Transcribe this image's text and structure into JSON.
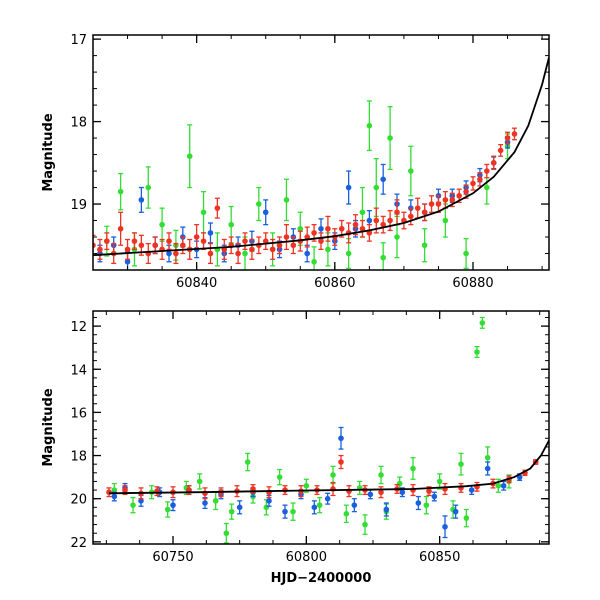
{
  "colors": {
    "green": "#33dd33",
    "blue": "#1a5fdd",
    "red": "#ee3322",
    "model": "#000000",
    "frame": "#000000"
  },
  "chart_data": [
    {
      "type": "scatter",
      "panel": "top",
      "xlabel": "",
      "ylabel": "Magnitude",
      "xlim": [
        60825,
        60891
      ],
      "ylim": [
        19.8,
        16.95
      ],
      "y_inverted": true,
      "xticks": [
        60840,
        60860,
        60880
      ],
      "xtick_labels": [
        "60840",
        "60860",
        "60880"
      ],
      "yticks": [
        17,
        18,
        19
      ],
      "ytick_labels": [
        "17",
        "18",
        "19"
      ],
      "model_curve": {
        "x": [
          60825,
          60835,
          60845,
          60855,
          60860,
          60865,
          60870,
          60875,
          60880,
          60883,
          60886,
          60888,
          60890,
          60891
        ],
        "y": [
          19.62,
          19.57,
          19.52,
          19.44,
          19.39,
          19.32,
          19.23,
          19.09,
          18.87,
          18.67,
          18.37,
          18.05,
          17.55,
          17.22
        ]
      },
      "series": [
        {
          "name": "",
          "color": "green",
          "x": [
            60827,
            60829,
            60831,
            60833,
            60835,
            60837,
            60839,
            60841,
            60843,
            60845,
            60847,
            60849,
            60851,
            60853,
            60855,
            60857,
            60859,
            60862,
            60864,
            60865,
            60866,
            60867,
            60868,
            60869,
            60871,
            60873,
            60876,
            60879,
            60882,
            60885
          ],
          "y": [
            19.45,
            18.85,
            19.55,
            18.8,
            19.25,
            19.5,
            18.42,
            19.1,
            19.55,
            19.25,
            19.6,
            19.0,
            19.55,
            18.95,
            19.3,
            19.7,
            19.55,
            19.6,
            19.1,
            18.05,
            18.8,
            19.65,
            18.2,
            19.4,
            18.6,
            19.5,
            19.2,
            19.6,
            18.8,
            18.3
          ],
          "err": [
            0.18,
            0.22,
            0.2,
            0.25,
            0.2,
            0.18,
            0.38,
            0.25,
            0.2,
            0.22,
            0.2,
            0.2,
            0.2,
            0.25,
            0.2,
            0.18,
            0.2,
            0.18,
            0.3,
            0.3,
            0.35,
            0.18,
            0.38,
            0.25,
            0.3,
            0.2,
            0.2,
            0.18,
            0.2,
            0.15
          ]
        },
        {
          "name": "",
          "color": "blue",
          "x": [
            60826,
            60828,
            60830,
            60832,
            60834,
            60836,
            60838,
            60840,
            60842,
            60844,
            60846,
            60848,
            60850,
            60852,
            60854,
            60856,
            60858,
            60860,
            60862,
            60863,
            60865,
            60867,
            60869,
            60871,
            60873,
            60875,
            60877,
            60879,
            60881,
            60883,
            60885
          ],
          "y": [
            19.6,
            19.5,
            19.7,
            18.95,
            19.5,
            19.6,
            19.4,
            19.55,
            19.35,
            19.6,
            19.5,
            19.45,
            19.1,
            19.55,
            19.4,
            19.6,
            19.3,
            19.45,
            18.8,
            19.3,
            19.2,
            18.7,
            19.0,
            19.05,
            19.1,
            18.9,
            18.9,
            18.8,
            18.65,
            18.5,
            18.25
          ],
          "err": [
            0.1,
            0.1,
            0.12,
            0.15,
            0.1,
            0.1,
            0.12,
            0.1,
            0.12,
            0.1,
            0.1,
            0.12,
            0.15,
            0.1,
            0.1,
            0.1,
            0.12,
            0.1,
            0.2,
            0.1,
            0.12,
            0.18,
            0.12,
            0.1,
            0.1,
            0.08,
            0.08,
            0.08,
            0.08,
            0.07,
            0.07
          ]
        },
        {
          "name": "",
          "color": "red",
          "x": [
            60825,
            60826,
            60827,
            60828,
            60829,
            60830,
            60831,
            60832,
            60833,
            60834,
            60835,
            60836,
            60837,
            60838,
            60839,
            60840,
            60841,
            60842,
            60843,
            60844,
            60845,
            60846,
            60847,
            60848,
            60849,
            60850,
            60851,
            60852,
            60853,
            60854,
            60855,
            60856,
            60857,
            60858,
            60859,
            60860,
            60861,
            60862,
            60863,
            60864,
            60865,
            60866,
            60867,
            60868,
            60869,
            60870,
            60871,
            60872,
            60873,
            60874,
            60875,
            60876,
            60877,
            60878,
            60879,
            60880,
            60881,
            60882,
            60883,
            60884,
            60885,
            60886
          ],
          "y": [
            19.5,
            19.55,
            19.45,
            19.6,
            19.3,
            19.55,
            19.45,
            19.5,
            19.6,
            19.5,
            19.55,
            19.45,
            19.6,
            19.5,
            19.55,
            19.4,
            19.45,
            19.6,
            19.05,
            19.55,
            19.5,
            19.6,
            19.45,
            19.55,
            19.5,
            19.45,
            19.55,
            19.5,
            19.4,
            19.5,
            19.45,
            19.4,
            19.35,
            19.45,
            19.3,
            19.4,
            19.3,
            19.35,
            19.25,
            19.3,
            19.35,
            19.2,
            19.25,
            19.2,
            19.1,
            19.2,
            19.15,
            19.05,
            19.1,
            19.0,
            19.0,
            18.95,
            18.95,
            18.9,
            18.85,
            18.75,
            18.7,
            18.6,
            18.5,
            18.35,
            18.2,
            18.15
          ],
          "err": [
            0.12,
            0.12,
            0.1,
            0.12,
            0.2,
            0.12,
            0.1,
            0.12,
            0.12,
            0.1,
            0.12,
            0.1,
            0.12,
            0.1,
            0.12,
            0.15,
            0.1,
            0.12,
            0.12,
            0.12,
            0.1,
            0.12,
            0.1,
            0.12,
            0.1,
            0.1,
            0.12,
            0.1,
            0.15,
            0.1,
            0.12,
            0.12,
            0.1,
            0.1,
            0.15,
            0.1,
            0.1,
            0.12,
            0.12,
            0.1,
            0.1,
            0.15,
            0.1,
            0.12,
            0.15,
            0.1,
            0.1,
            0.12,
            0.1,
            0.1,
            0.1,
            0.1,
            0.08,
            0.08,
            0.08,
            0.08,
            0.08,
            0.08,
            0.08,
            0.07,
            0.07,
            0.07
          ]
        }
      ]
    },
    {
      "type": "scatter",
      "panel": "bottom",
      "xlabel": "HJD−2400000",
      "ylabel": "Magnitude",
      "xlim": [
        60720,
        60891
      ],
      "ylim": [
        22.1,
        11.3
      ],
      "y_inverted": true,
      "xticks": [
        60750,
        60800,
        60850
      ],
      "xtick_labels": [
        "60750",
        "60800",
        "60850"
      ],
      "yticks": [
        12,
        14,
        16,
        18,
        20,
        22
      ],
      "ytick_labels": [
        "12",
        "14",
        "16",
        "18",
        "20",
        "22"
      ],
      "model_curve": {
        "x": [
          60726,
          60760,
          60800,
          60840,
          60860,
          60870,
          60878,
          60884,
          60888,
          60891
        ],
        "y": [
          19.75,
          19.7,
          19.62,
          19.55,
          19.42,
          19.3,
          19.0,
          18.6,
          18.0,
          17.3
        ]
      },
      "series": [
        {
          "name": "",
          "color": "green",
          "x": [
            60728,
            60735,
            60742,
            60748,
            60755,
            60760,
            60766,
            60770,
            60772,
            60778,
            60780,
            60785,
            60790,
            60795,
            60800,
            60805,
            60810,
            60815,
            60820,
            60822,
            60828,
            60830,
            60835,
            60840,
            60845,
            60850,
            60855,
            60858,
            60860,
            60864,
            60866,
            60868,
            60872,
            60876
          ],
          "y": [
            19.6,
            20.3,
            19.7,
            20.5,
            19.5,
            19.2,
            20.1,
            21.6,
            20.6,
            18.3,
            19.9,
            20.4,
            19.0,
            20.6,
            19.4,
            20.3,
            18.9,
            20.7,
            19.5,
            21.2,
            18.9,
            20.6,
            19.3,
            18.6,
            20.3,
            19.2,
            20.5,
            18.4,
            20.9,
            13.2,
            11.85,
            18.1,
            19.4,
            19.2
          ],
          "err": [
            0.3,
            0.35,
            0.3,
            0.35,
            0.3,
            0.35,
            0.4,
            0.45,
            0.35,
            0.4,
            0.3,
            0.35,
            0.35,
            0.4,
            0.3,
            0.35,
            0.4,
            0.4,
            0.3,
            0.45,
            0.4,
            0.35,
            0.3,
            0.5,
            0.4,
            0.35,
            0.4,
            0.5,
            0.4,
            0.25,
            0.25,
            0.5,
            0.3,
            0.3
          ]
        },
        {
          "name": "",
          "color": "blue",
          "x": [
            60728,
            60732,
            60738,
            60745,
            60750,
            60756,
            60762,
            60768,
            60775,
            60780,
            60786,
            60792,
            60798,
            60803,
            60808,
            60813,
            60818,
            60824,
            60830,
            60836,
            60842,
            60848,
            60852,
            60856,
            60862,
            60868,
            60874,
            60880,
            60886
          ],
          "y": [
            19.9,
            19.5,
            20.1,
            19.7,
            20.3,
            19.6,
            20.2,
            19.8,
            20.4,
            19.7,
            20.1,
            20.6,
            19.8,
            20.4,
            20.0,
            17.2,
            20.3,
            19.8,
            20.5,
            19.7,
            20.2,
            19.9,
            21.3,
            20.6,
            19.6,
            18.6,
            19.4,
            19.0,
            18.3
          ],
          "err": [
            0.2,
            0.2,
            0.25,
            0.2,
            0.25,
            0.2,
            0.25,
            0.2,
            0.3,
            0.2,
            0.25,
            0.3,
            0.2,
            0.3,
            0.25,
            0.5,
            0.3,
            0.2,
            0.3,
            0.2,
            0.3,
            0.2,
            0.5,
            0.3,
            0.2,
            0.3,
            0.2,
            0.15,
            0.1
          ]
        },
        {
          "name": "",
          "color": "red",
          "x": [
            60726,
            60732,
            60738,
            60744,
            60750,
            60756,
            60762,
            60768,
            60774,
            60780,
            60786,
            60792,
            60798,
            60804,
            60810,
            60813,
            60816,
            60822,
            60828,
            60834,
            60840,
            60846,
            60852,
            60858,
            60864,
            60870,
            60876,
            60882,
            60886
          ],
          "y": [
            19.7,
            19.6,
            19.75,
            19.65,
            19.7,
            19.6,
            19.75,
            19.7,
            19.65,
            19.55,
            19.7,
            19.6,
            19.65,
            19.6,
            19.55,
            18.3,
            19.65,
            19.6,
            19.7,
            19.55,
            19.6,
            19.65,
            19.55,
            19.5,
            19.45,
            19.3,
            19.1,
            18.8,
            18.3
          ],
          "err": [
            0.2,
            0.2,
            0.25,
            0.2,
            0.25,
            0.2,
            0.25,
            0.2,
            0.25,
            0.2,
            0.25,
            0.2,
            0.25,
            0.2,
            0.3,
            0.3,
            0.25,
            0.2,
            0.25,
            0.2,
            0.25,
            0.2,
            0.25,
            0.2,
            0.2,
            0.2,
            0.15,
            0.12,
            0.1
          ]
        }
      ]
    }
  ]
}
